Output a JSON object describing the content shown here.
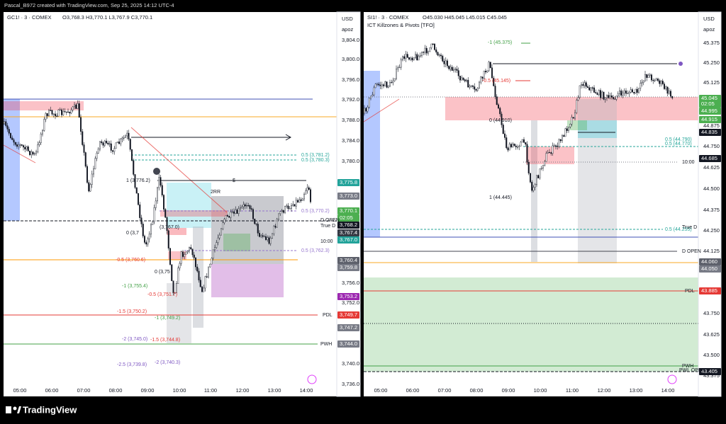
{
  "header": "Pascal_B972 created with TradingView.com, Sep 25, 2025 14:12 UTC-4",
  "footer": "TradingView",
  "panels": [
    {
      "symbol": "GC1! · 3 · COMEX",
      "ohlc": "O3,768.3 H3,770.1 L3,767.9 C3,770.1",
      "currency": "USD",
      "unit": "apoz",
      "axis_labels": [
        "3,804.0",
        "3,800.0",
        "3,796.0",
        "3,792.0",
        "3,788.0",
        "3,784.0",
        "3,780.0",
        "3,756.0",
        "3,752.0",
        "3,740.0",
        "3,736.0"
      ],
      "price_tags": [
        {
          "text": "3,775.8",
          "color": "#22a39a"
        },
        {
          "text": "3,773.0",
          "color": "#787b86"
        },
        {
          "text": "3,770.1",
          "color": "#4caf50"
        },
        {
          "text": "02:05",
          "color": "#4caf50"
        },
        {
          "text": "3,768.2",
          "color": "#131722"
        },
        {
          "text": "3,767.4",
          "color": "#363a45"
        },
        {
          "text": "3,767.0",
          "color": "#22a39a"
        },
        {
          "text": "3,760.4",
          "color": "#5d606b"
        },
        {
          "text": "3,759.8",
          "color": "#787b86"
        },
        {
          "text": "3,753.2",
          "color": "#9c27b0"
        },
        {
          "text": "3,749.7",
          "color": "#e53935"
        },
        {
          "text": "3,747.2",
          "color": "#787b86"
        },
        {
          "text": "3,744.0",
          "color": "#787b86"
        }
      ],
      "time_labels": [
        "05:00",
        "06:00",
        "07:00",
        "08:00",
        "09:00",
        "10:00",
        "11:00",
        "12:00",
        "13:00",
        "14:00"
      ],
      "annotations": [
        {
          "text": "0.5 (3,781.2)",
          "color": "#26a69a"
        },
        {
          "text": "0.5 (3,780.3)",
          "color": "#26a69a"
        },
        {
          "text": "1 (3,776.2)",
          "color": "#131722"
        },
        {
          "text": "$",
          "color": "#131722"
        },
        {
          "text": "2RR",
          "color": "#131722"
        },
        {
          "text": "0.5 (3,770.2)",
          "color": "#9575cd"
        },
        {
          "text": "D OPEN",
          "color": "#131722"
        },
        {
          "text": "True D",
          "color": "#131722"
        },
        {
          "text": "(3,767.0)",
          "color": "#131722"
        },
        {
          "text": "0 (3,7",
          "color": "#131722"
        },
        {
          "text": "10:00",
          "color": "#131722"
        },
        {
          "text": "0.5 (3,762.3)",
          "color": "#9575cd"
        },
        {
          "text": "-0.5 (3,760.6)",
          "color": "#e53935"
        },
        {
          "text": "0 (3,75",
          "color": "#131722"
        },
        {
          "text": "-1 (3,755.4)",
          "color": "#43a047"
        },
        {
          "text": "-0.5 (3,751.7)",
          "color": "#e53935"
        },
        {
          "text": "-1.5 (3,750.2)",
          "color": "#e53935"
        },
        {
          "text": "-1 (3,749.2)",
          "color": "#43a047"
        },
        {
          "text": "PDL",
          "color": "#131722"
        },
        {
          "text": "-2 (3,745.0)",
          "color": "#7e57c2"
        },
        {
          "text": "-1.5 (3,744.8)",
          "color": "#e53935"
        },
        {
          "text": "PWH",
          "color": "#131722"
        },
        {
          "text": "-2.5 (3,739.8)",
          "color": "#7e57c2"
        },
        {
          "text": "-2 (3,740.3)",
          "color": "#7e57c2"
        }
      ]
    },
    {
      "symbol": "SI1! · 3 · COMEX",
      "ohlc": "O45.030 H45.045 L45.015 C45.045",
      "indicator": "ICT Killzones & Pivots [TFO]",
      "currency": "USD",
      "unit": "apoz",
      "axis_labels": [
        "45.375",
        "45.250",
        "45.125",
        "44.875",
        "44.750",
        "44.625",
        "44.500",
        "44.375",
        "44.250",
        "44.125",
        "43.750",
        "43.625",
        "43.500",
        "43.375"
      ],
      "price_tags": [
        {
          "text": "45.045",
          "color": "#4caf50"
        },
        {
          "text": "02:05",
          "color": "#4caf50"
        },
        {
          "text": "44.995",
          "color": "#4caf50"
        },
        {
          "text": "44.915",
          "color": "#4caf50"
        },
        {
          "text": "44.835",
          "color": "#131722"
        },
        {
          "text": "44.685",
          "color": "#131722"
        },
        {
          "text": "44.060",
          "color": "#5d606b"
        },
        {
          "text": "44.050",
          "color": "#787b86"
        },
        {
          "text": "43.885",
          "color": "#e53935"
        },
        {
          "text": "43.405",
          "color": "#131722"
        }
      ],
      "time_labels": [
        "05:00",
        "06:00",
        "07:00",
        "08:00",
        "09:00",
        "10:00",
        "11:00",
        "12:00",
        "13:00",
        "14:00"
      ],
      "annotations": [
        {
          "text": "-1 (45.375)",
          "color": "#43a047"
        },
        {
          "text": "-0.5 (45.145)",
          "color": "#e53935"
        },
        {
          "text": "0 (44.910)",
          "color": "#131722"
        },
        {
          "text": "1 (44.445)",
          "color": "#131722"
        },
        {
          "text": "0.5 (44.790)",
          "color": "#26a69a"
        },
        {
          "text": "0.5 (44.770)",
          "color": "#26a69a"
        },
        {
          "text": "10:00",
          "color": "#131722"
        },
        {
          "text": "0.5 (44.255)",
          "color": "#26a69a"
        },
        {
          "text": "True D",
          "color": "#131722"
        },
        {
          "text": "D OPEN",
          "color": "#131722"
        },
        {
          "text": "PDL",
          "color": "#131722"
        },
        {
          "text": "PWH",
          "color": "#131722"
        },
        {
          "text": "PWL OPEN",
          "color": "#131722"
        }
      ]
    }
  ]
}
